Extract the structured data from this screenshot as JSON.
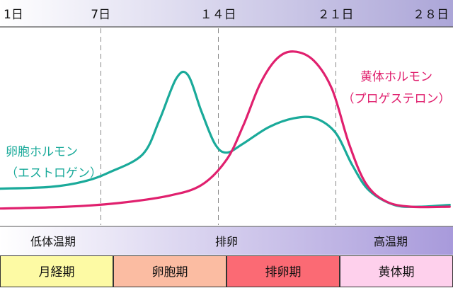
{
  "chart_data": {
    "type": "line",
    "title": "",
    "xlabel": "",
    "ylabel": "",
    "x_unit": "day",
    "x_range": [
      1,
      28
    ],
    "y_range": [
      0,
      100
    ],
    "grid": "vertical dashed lines at days 7, 14, 21",
    "day_ticks": [
      {
        "day": 1,
        "label": "1日",
        "align": "start"
      },
      {
        "day": 7,
        "label": "7日",
        "align": "middle"
      },
      {
        "day": 14,
        "label": "１４日",
        "align": "middle"
      },
      {
        "day": 21,
        "label": "２１日",
        "align": "middle"
      },
      {
        "day": 28,
        "label": "２８日",
        "align": "end"
      }
    ],
    "guide_days": [
      7,
      14,
      21
    ],
    "series": [
      {
        "name": "卵胞ホルモン（エストロゲン）",
        "label_lines": [
          "卵胞ホルモン",
          "（エストロゲン）"
        ],
        "color": "#1aaa9a",
        "points": [
          [
            1,
            17
          ],
          [
            4,
            18
          ],
          [
            6,
            21
          ],
          [
            7.5,
            26
          ],
          [
            9.5,
            36
          ],
          [
            10.5,
            55
          ],
          [
            11.5,
            78
          ],
          [
            12.2,
            80
          ],
          [
            13,
            60
          ],
          [
            13.8,
            42
          ],
          [
            14.5,
            37
          ],
          [
            15.5,
            42
          ],
          [
            17,
            51
          ],
          [
            18.5,
            56
          ],
          [
            19.8,
            56
          ],
          [
            21,
            48
          ],
          [
            22,
            30
          ],
          [
            23,
            16
          ],
          [
            24.5,
            8
          ],
          [
            26,
            7
          ],
          [
            27.8,
            8
          ]
        ]
      },
      {
        "name": "黄体ホルモン（プロゲステロン）",
        "label_lines": [
          "黄体ホルモン",
          "（プロゲステロン）"
        ],
        "color": "#e0206e",
        "points": [
          [
            1,
            6
          ],
          [
            5,
            7
          ],
          [
            8,
            9
          ],
          [
            11,
            13
          ],
          [
            13,
            19
          ],
          [
            14.5,
            33
          ],
          [
            15.5,
            52
          ],
          [
            16.5,
            75
          ],
          [
            17.5,
            89
          ],
          [
            18.5,
            93
          ],
          [
            19.7,
            88
          ],
          [
            20.8,
            72
          ],
          [
            21.8,
            42
          ],
          [
            22.8,
            20
          ],
          [
            24,
            10
          ],
          [
            25.5,
            7
          ],
          [
            27.8,
            7
          ]
        ]
      }
    ]
  },
  "temp_bar": {
    "labels": [
      "低体温期",
      "排卵",
      "高温期"
    ],
    "gradient": [
      "#ffffff",
      "#a89adb"
    ]
  },
  "phases": [
    {
      "label": "月経期",
      "color": "#fdfaa4",
      "start": 0,
      "end": 7
    },
    {
      "label": "卵胞期",
      "color": "#fbbca2",
      "start": 7,
      "end": 14
    },
    {
      "label": "排卵期",
      "color": "#fb6a74",
      "start": 14,
      "end": 21
    },
    {
      "label": "黄体期",
      "color": "#fed0ec",
      "start": 21,
      "end": 28
    }
  ],
  "header": {
    "gradient": [
      "#ffffff",
      "#aca6d8"
    ]
  }
}
